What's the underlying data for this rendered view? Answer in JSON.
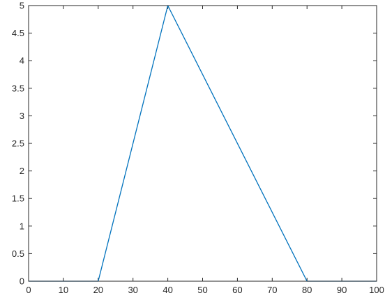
{
  "chart_data": {
    "type": "line",
    "title": "",
    "xlabel": "",
    "ylabel": "",
    "xlim": [
      0,
      100
    ],
    "ylim": [
      0,
      5
    ],
    "x_ticks": [
      0,
      10,
      20,
      30,
      40,
      50,
      60,
      70,
      80,
      90,
      100
    ],
    "x_tick_labels": [
      "0",
      "10",
      "20",
      "30",
      "40",
      "50",
      "60",
      "70",
      "80",
      "90",
      "100"
    ],
    "y_ticks": [
      0,
      0.5,
      1,
      1.5,
      2,
      2.5,
      3,
      3.5,
      4,
      4.5,
      5
    ],
    "y_tick_labels": [
      "0",
      "0.5",
      "1",
      "1.5",
      "2",
      "2.5",
      "3",
      "3.5",
      "4",
      "4.5",
      "5"
    ],
    "grid": false,
    "legend": "none",
    "series": [
      {
        "color": "#0072bd",
        "x": [
          0,
          20,
          40,
          80,
          100
        ],
        "y": [
          0,
          0,
          5,
          0,
          0
        ]
      }
    ]
  }
}
